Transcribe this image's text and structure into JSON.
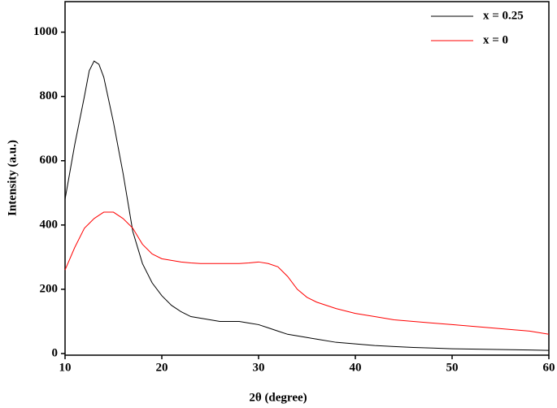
{
  "chart_data": {
    "type": "line",
    "xlabel": "2θ (degree)",
    "ylabel": "Intensity (a.u.)",
    "x": [
      10,
      11,
      12,
      12.5,
      13,
      13.5,
      14,
      15,
      16,
      17,
      18,
      19,
      20,
      21,
      22,
      23,
      24,
      25,
      26,
      27,
      28,
      29,
      30,
      31,
      32,
      33,
      34,
      35,
      36,
      38,
      40,
      42,
      44,
      46,
      48,
      50,
      52,
      54,
      56,
      58,
      60
    ],
    "series": [
      {
        "name": "x = 0.25",
        "color": "#000000",
        "values": [
          480,
          650,
          800,
          880,
          910,
          900,
          860,
          720,
          560,
          380,
          280,
          220,
          180,
          150,
          130,
          115,
          110,
          105,
          100,
          100,
          100,
          95,
          90,
          80,
          70,
          60,
          55,
          50,
          45,
          35,
          30,
          25,
          22,
          19,
          17,
          15,
          14,
          13,
          12,
          11,
          10
        ]
      },
      {
        "name": "x = 0",
        "color": "#ff0000",
        "values": [
          260,
          330,
          390,
          405,
          420,
          430,
          440,
          440,
          420,
          390,
          340,
          310,
          295,
          290,
          285,
          282,
          280,
          280,
          280,
          280,
          280,
          282,
          285,
          280,
          270,
          240,
          200,
          175,
          160,
          140,
          125,
          115,
          105,
          100,
          95,
          90,
          85,
          80,
          75,
          70,
          60
        ]
      }
    ],
    "xlim": [
      10,
      60
    ],
    "xticks": [
      10,
      20,
      30,
      40,
      50,
      60
    ],
    "ylim": [
      -5,
      1095
    ],
    "yticks": [
      0,
      200,
      400,
      600,
      800,
      1000
    ],
    "legend": "top-right",
    "grid": false
  }
}
